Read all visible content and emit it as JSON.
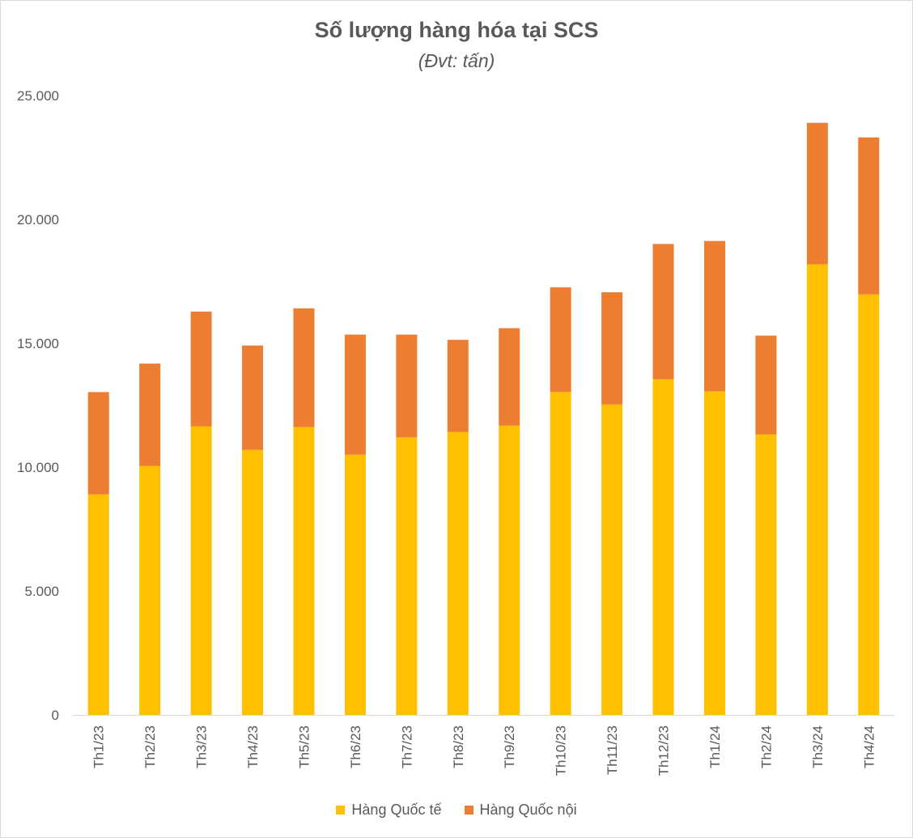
{
  "chart_data": {
    "type": "bar",
    "stacked": true,
    "title": "Số lượng hàng hóa tại SCS",
    "subtitle": "(Đvt: tấn)",
    "xlabel": "",
    "ylabel": "",
    "ylim": [
      0,
      25000
    ],
    "yticks": [
      0,
      5000,
      10000,
      15000,
      20000,
      25000
    ],
    "ytick_labels": [
      "0",
      "5.000",
      "10.000",
      "15.000",
      "20.000",
      "25.000"
    ],
    "grid": false,
    "legend_position": "bottom",
    "categories": [
      "Th1/23",
      "Th2/23",
      "Th3/23",
      "Th4/23",
      "Th5/23",
      "Th6/23",
      "Th7/23",
      "Th8/23",
      "Th9/23",
      "Th10/23",
      "Th11/23",
      "Th12/23",
      "Th1/24",
      "Th2/24",
      "Th3/24",
      "Th4/24"
    ],
    "series": [
      {
        "name": "Hàng Quốc tế",
        "color": "#FFC000",
        "values": [
          8900,
          10050,
          11650,
          10700,
          11620,
          10500,
          11200,
          11420,
          11680,
          13030,
          12530,
          13550,
          13060,
          11320,
          18190,
          16970
        ]
      },
      {
        "name": "Hàng Quốc nội",
        "color": "#ED7D31",
        "values": [
          4130,
          4130,
          4630,
          4210,
          4790,
          4850,
          4150,
          3720,
          3930,
          4230,
          4530,
          5460,
          6070,
          3990,
          5710,
          6340
        ]
      }
    ]
  }
}
